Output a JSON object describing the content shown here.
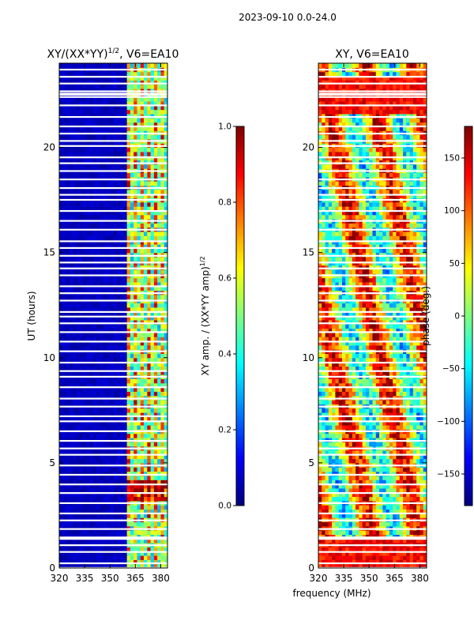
{
  "suptitle": "2023-09-10 0.0-24.0",
  "colormap": [
    "#00007f",
    "#0000ff",
    "#007fff",
    "#00ffff",
    "#7fff7f",
    "#ffff00",
    "#ff7f00",
    "#ff0000",
    "#7f0000"
  ],
  "chart_data": [
    {
      "type": "heatmap",
      "title": "XY/(XX*YY)^1/2, V6=EA10",
      "title_main": "XY/(XX*YY)",
      "title_sup": "1/2",
      "title_tail": ", V6=EA10",
      "xlabel": "",
      "ylabel": "UT (hours)",
      "xlim": [
        320,
        384
      ],
      "ylim": [
        0,
        24
      ],
      "xticks": [
        320,
        335,
        350,
        365,
        380
      ],
      "yticks": [
        0,
        5,
        10,
        15,
        20
      ],
      "colorbar": {
        "label": "XY amp. / (XX*YY amp)^1/2",
        "label_main": "XY amp. / (XX*YY amp)",
        "label_sup": "1/2",
        "range": [
          0.0,
          1.0
        ],
        "ticks": [
          "0.0",
          "0.2",
          "0.4",
          "0.6",
          "0.8",
          "1.0"
        ]
      },
      "description_values": {
        "low_band_MHz": [
          320,
          361
        ],
        "low_band_level": 0.05,
        "high_band_MHz": [
          361,
          384
        ],
        "high_band_level_range": [
          0.3,
          0.9
        ]
      }
    },
    {
      "type": "heatmap",
      "title": "XY, V6=EA10",
      "xlabel": "frequency (MHz)",
      "ylabel": "",
      "xlim": [
        320,
        384
      ],
      "ylim": [
        0,
        24
      ],
      "xticks": [
        320,
        335,
        350,
        365,
        380
      ],
      "yticks": [
        0,
        5,
        10,
        15,
        20
      ],
      "colorbar": {
        "label": "phase (deg.)",
        "range": [
          -180,
          180
        ],
        "ticks": [
          "−150",
          "−100",
          "−50",
          "0",
          "50",
          "100",
          "150"
        ]
      }
    }
  ]
}
